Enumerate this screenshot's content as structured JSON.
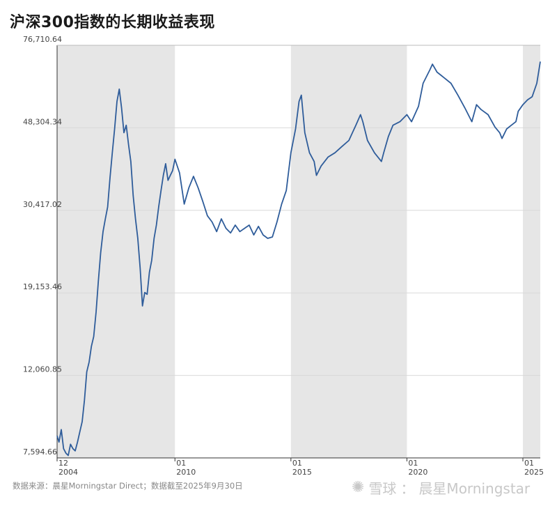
{
  "title": "沪深300指数的长期收益表现",
  "footer": {
    "source": "数据来源：晨星Morningstar Direct；数据截至2025年9月30日"
  },
  "watermark": {
    "logo_icon": "snowball-logo-icon",
    "text_xueqiu": "雪球",
    "separator": "：",
    "text_brand": "晨星Morningstar"
  },
  "chart_data": {
    "type": "line",
    "title": "沪深300指数的长期收益表现",
    "y_scale": "log",
    "ylim": [
      7594.66,
      76710.64
    ],
    "y_ticks": [
      {
        "value": 7594.66,
        "label": "7,594.66"
      },
      {
        "value": 12060.85,
        "label": "12,060.85"
      },
      {
        "value": 19153.46,
        "label": "19,153.46"
      },
      {
        "value": 30417.02,
        "label": "30,417.02"
      },
      {
        "value": 48304.34,
        "label": "48,304.34"
      },
      {
        "value": 76710.64,
        "label": "76,710.64"
      }
    ],
    "x_ticks": [
      {
        "year": 2004.92,
        "month_label": "12",
        "year_label": "2004"
      },
      {
        "year": 2010.0,
        "month_label": "01",
        "year_label": "2010"
      },
      {
        "year": 2015.0,
        "month_label": "01",
        "year_label": "2015"
      },
      {
        "year": 2020.0,
        "month_label": "01",
        "year_label": "2020"
      },
      {
        "year": 2025.0,
        "month_label": "01",
        "year_label": "2025"
      }
    ],
    "xlim": [
      2004.92,
      2025.75
    ],
    "shaded_periods": [
      [
        2004.92,
        2010.0
      ],
      [
        2015.0,
        2020.0
      ],
      [
        2025.0,
        2025.75
      ]
    ],
    "grid": true,
    "line_color": "#2e5c9a",
    "shade_color": "#e6e6e6",
    "series": [
      {
        "x": [
          2004.92,
          2005.0,
          2005.1,
          2005.2,
          2005.3,
          2005.4,
          2005.5,
          2005.6,
          2005.7,
          2005.8,
          2005.9,
          2006.0,
          2006.1,
          2006.2,
          2006.3,
          2006.4,
          2006.5,
          2006.6,
          2006.7,
          2006.8,
          2006.9,
          2007.0,
          2007.1,
          2007.2,
          2007.3,
          2007.4,
          2007.5,
          2007.6,
          2007.7,
          2007.8,
          2007.9,
          2008.0,
          2008.1,
          2008.2,
          2008.3,
          2008.4,
          2008.5,
          2008.6,
          2008.7,
          2008.8,
          2008.9,
          2009.0,
          2009.1,
          2009.2,
          2009.3,
          2009.4,
          2009.5,
          2009.6,
          2009.7,
          2009.8,
          2009.9,
          2010.0,
          2010.2,
          2010.4,
          2010.6,
          2010.8,
          2011.0,
          2011.2,
          2011.4,
          2011.6,
          2011.8,
          2012.0,
          2012.2,
          2012.4,
          2012.6,
          2012.8,
          2013.0,
          2013.2,
          2013.4,
          2013.6,
          2013.8,
          2014.0,
          2014.2,
          2014.4,
          2014.6,
          2014.8,
          2015.0,
          2015.2,
          2015.35,
          2015.45,
          2015.6,
          2015.8,
          2016.0,
          2016.1,
          2016.3,
          2016.6,
          2016.9,
          2017.2,
          2017.5,
          2017.8,
          2018.0,
          2018.1,
          2018.3,
          2018.6,
          2018.9,
          2019.0,
          2019.2,
          2019.4,
          2019.7,
          2020.0,
          2020.2,
          2020.5,
          2020.7,
          2021.0,
          2021.1,
          2021.3,
          2021.6,
          2021.9,
          2022.2,
          2022.5,
          2022.8,
          2023.0,
          2023.2,
          2023.5,
          2023.8,
          2024.0,
          2024.1,
          2024.3,
          2024.5,
          2024.7,
          2024.8,
          2025.0,
          2025.2,
          2025.4,
          2025.6,
          2025.75
        ],
        "y": [
          8600,
          8300,
          8900,
          8000,
          7800,
          7700,
          8200,
          8000,
          7900,
          8300,
          8800,
          9300,
          10500,
          12300,
          13000,
          14200,
          15000,
          17200,
          20500,
          24000,
          27000,
          29000,
          31000,
          36500,
          42000,
          48000,
          56000,
          60000,
          54000,
          47000,
          49000,
          44000,
          40000,
          33000,
          29000,
          26000,
          22000,
          17800,
          19200,
          19000,
          21500,
          23000,
          26000,
          28000,
          31000,
          34000,
          37000,
          39500,
          36000,
          37000,
          38000,
          40500,
          37500,
          31500,
          34500,
          36800,
          34500,
          32000,
          29500,
          28500,
          27000,
          29000,
          27500,
          26800,
          28000,
          27000,
          27500,
          28000,
          26500,
          27800,
          26500,
          26000,
          26200,
          28500,
          31500,
          34000,
          42000,
          48000,
          56000,
          58000,
          47000,
          42000,
          40000,
          37000,
          39000,
          41000,
          42000,
          43500,
          45000,
          49000,
          52000,
          50000,
          45000,
          42000,
          40000,
          42000,
          46000,
          49000,
          50000,
          52000,
          50000,
          54500,
          62000,
          67000,
          69000,
          66000,
          64000,
          62000,
          58000,
          54000,
          50000,
          55000,
          53500,
          52000,
          48500,
          47000,
          45500,
          48000,
          49000,
          50000,
          53000,
          55000,
          56500,
          57500,
          62000,
          70000
        ]
      }
    ]
  }
}
